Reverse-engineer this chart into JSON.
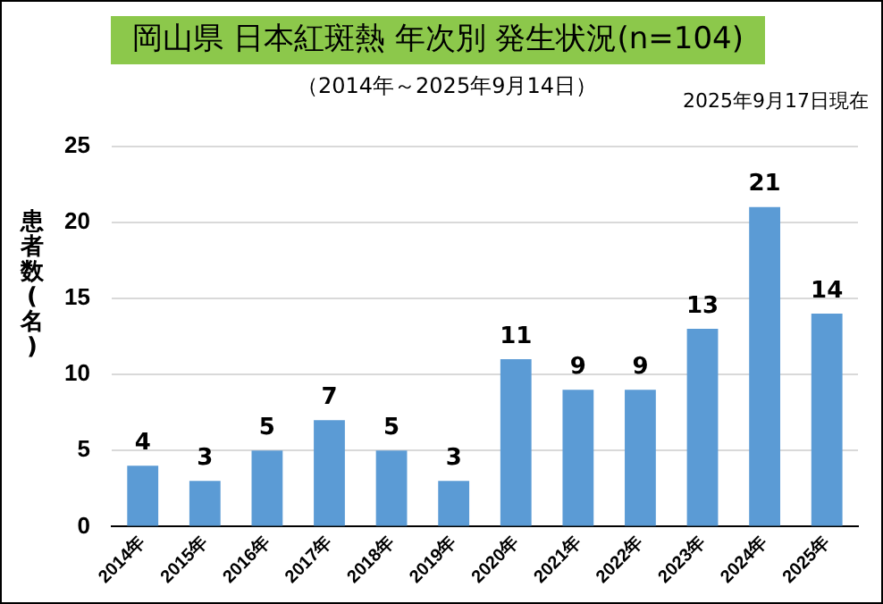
{
  "chart_data": {
    "type": "bar",
    "title": "岡山県 日本紅斑熱 年次別 発生状況(n=104)",
    "subtitle": "（2014年～2025年9月14日）",
    "annotations": [
      "2025年9月17日現在"
    ],
    "ylabel": "患者数(名)",
    "categories": [
      "2014年",
      "2015年",
      "2016年",
      "2017年",
      "2018年",
      "2019年",
      "2020年",
      "2021年",
      "2022年",
      "2023年",
      "2024年",
      "2025年"
    ],
    "values": [
      4,
      3,
      5,
      7,
      5,
      3,
      11,
      9,
      9,
      13,
      21,
      14
    ],
    "color": "#5b9bd5",
    "ylim": [
      0,
      25
    ],
    "yticks": [
      0,
      5,
      10,
      15,
      20,
      25
    ],
    "grid": "y",
    "legend": false,
    "data_labels": true
  }
}
